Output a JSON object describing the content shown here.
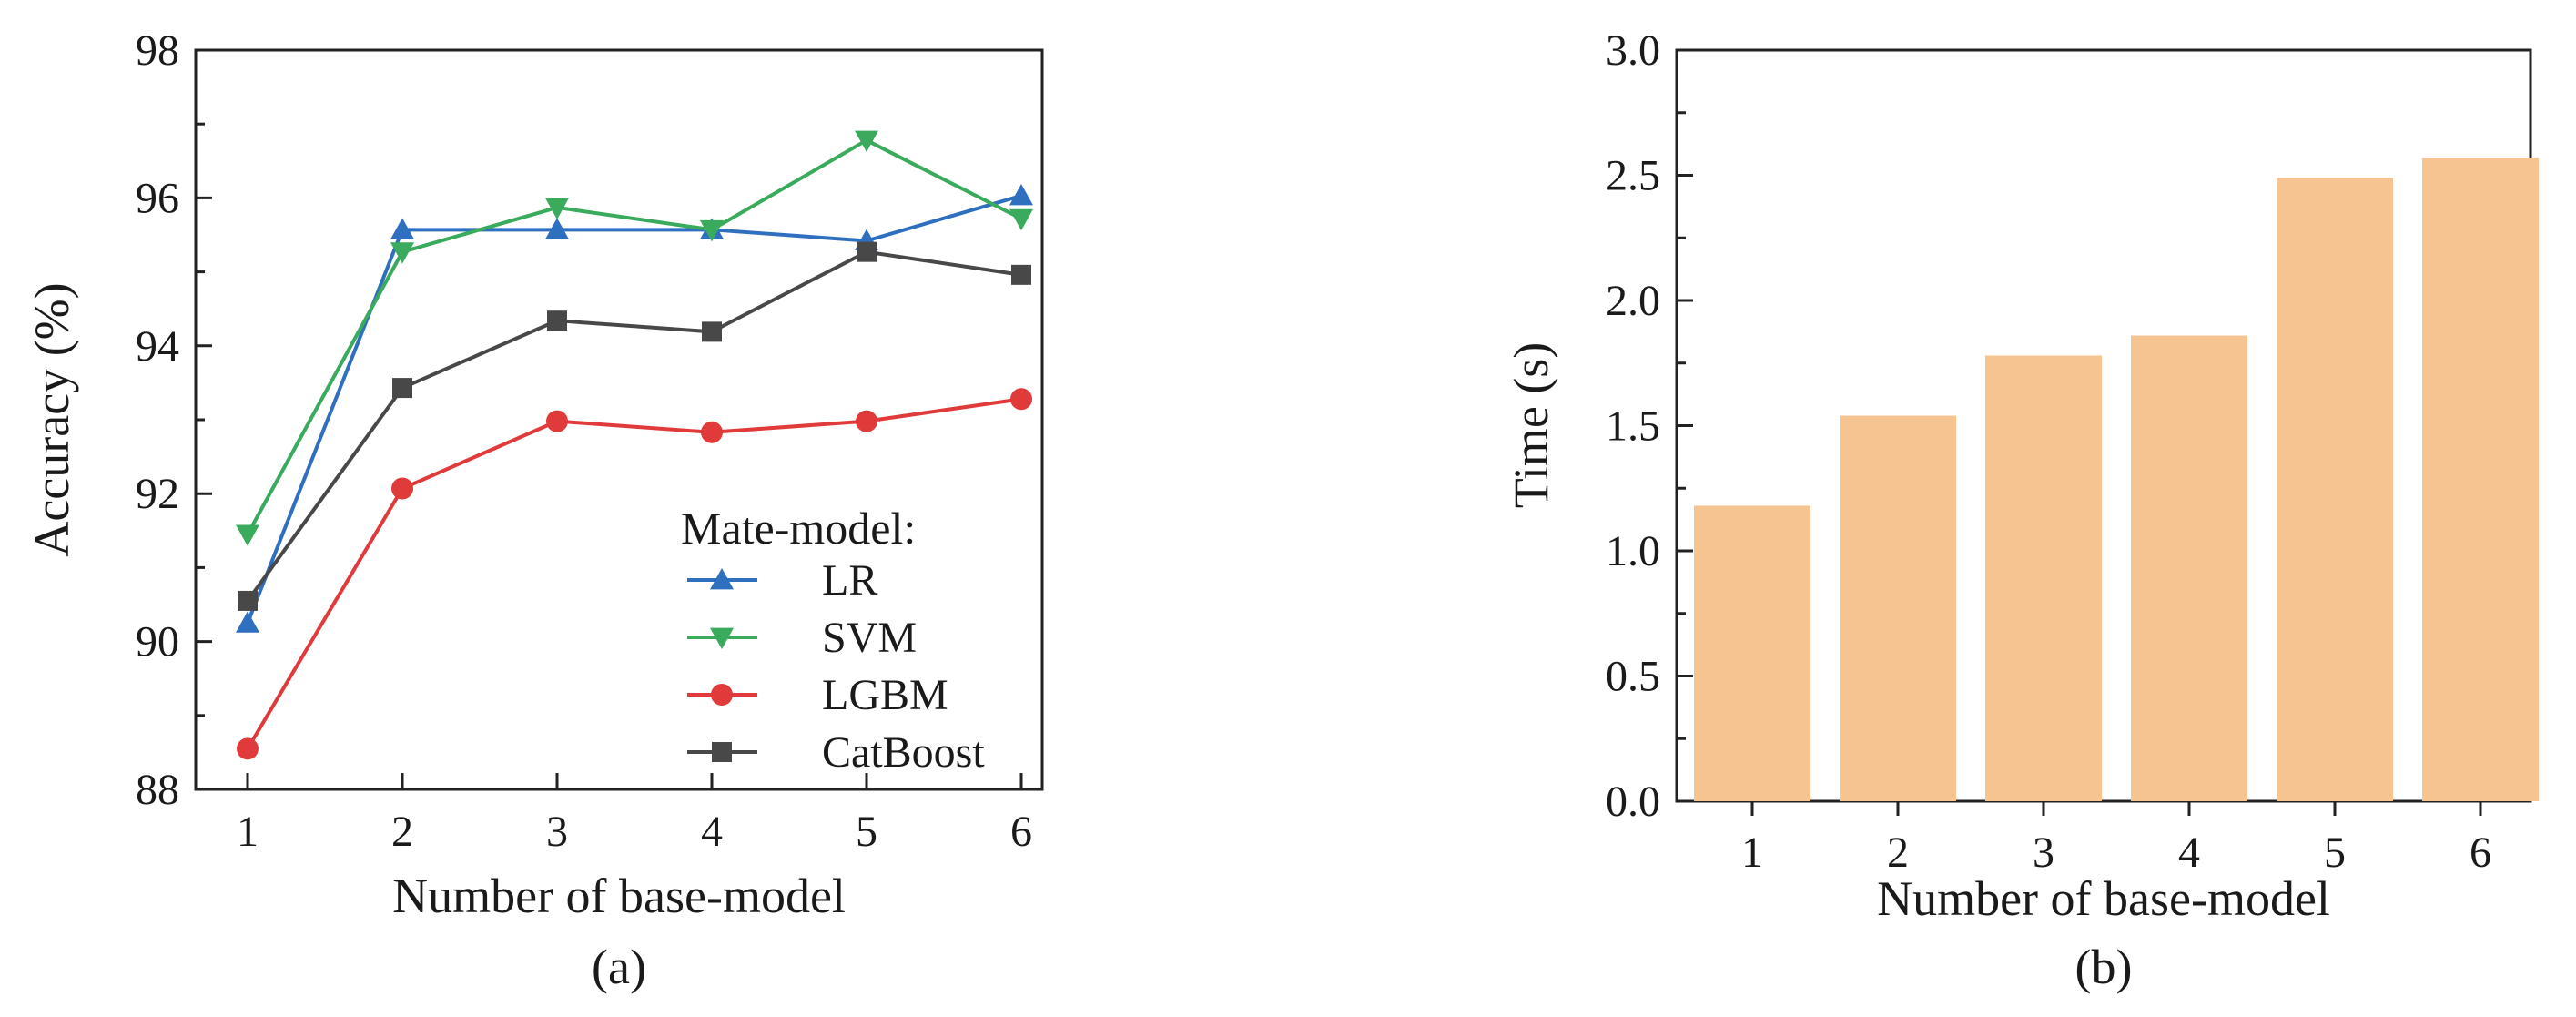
{
  "chart_data": [
    {
      "type": "line",
      "caption": "(a)",
      "xlabel": "Number of base-model",
      "ylabel": "Accuracy (%)",
      "x": [
        1,
        2,
        3,
        4,
        5,
        6
      ],
      "xticks": [
        "1",
        "2",
        "3",
        "4",
        "5",
        "6"
      ],
      "ylim": [
        88,
        98
      ],
      "yticks": [
        "88",
        "90",
        "92",
        "94",
        "96",
        "98"
      ],
      "legend_title": "Mate-model:",
      "legend_position": "bottom-right",
      "grid": false,
      "series": [
        {
          "name": "LR",
          "color": "#2f6fbf",
          "marker": "triangle-up",
          "values": [
            90.25,
            95.57,
            95.57,
            95.57,
            95.42,
            96.03
          ]
        },
        {
          "name": "SVM",
          "color": "#3aaa5c",
          "marker": "triangle-down",
          "values": [
            91.45,
            95.27,
            95.87,
            95.57,
            96.78,
            95.72
          ]
        },
        {
          "name": "LGBM",
          "color": "#e03a3a",
          "marker": "circle",
          "values": [
            88.55,
            92.07,
            92.98,
            92.83,
            92.98,
            93.28
          ]
        },
        {
          "name": "CatBoost",
          "color": "#484848",
          "marker": "square",
          "values": [
            90.55,
            93.43,
            94.34,
            94.19,
            95.27,
            94.96
          ]
        }
      ]
    },
    {
      "type": "bar",
      "caption": "(b)",
      "xlabel": "Number of base-model",
      "ylabel": "Time (s)",
      "categories": [
        "1",
        "2",
        "3",
        "4",
        "5",
        "6"
      ],
      "values": [
        1.18,
        1.54,
        1.78,
        1.86,
        2.49,
        2.57
      ],
      "ylim": [
        0,
        3.0
      ],
      "yticks": [
        "0.0",
        "0.5",
        "1.0",
        "1.5",
        "2.0",
        "2.5",
        "3.0"
      ],
      "bar_color": "#f5c491",
      "grid": false
    }
  ]
}
